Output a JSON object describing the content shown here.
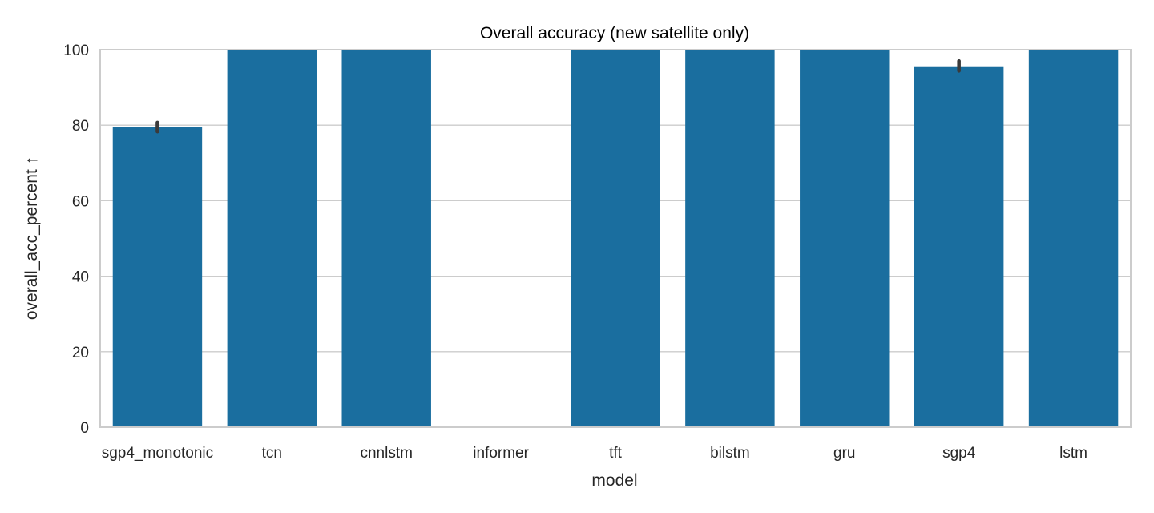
{
  "chart_data": {
    "type": "bar",
    "title": "Overall accuracy (new satellite only)",
    "xlabel": "model",
    "ylabel": "overall_acc_percent ↑",
    "categories": [
      "sgp4_monotonic",
      "tcn",
      "cnnlstm",
      "informer",
      "tft",
      "bilstm",
      "gru",
      "sgp4",
      "lstm"
    ],
    "values": [
      79.5,
      100,
      100,
      0,
      100,
      100,
      100,
      95.6,
      100
    ],
    "error_bars": [
      [
        78.3,
        80.7
      ],
      null,
      null,
      null,
      null,
      null,
      null,
      [
        94.4,
        97.0
      ],
      null
    ],
    "ylim": [
      0,
      100
    ],
    "yticks": [
      0,
      20,
      40,
      60,
      80,
      100
    ],
    "grid": true,
    "colors": {
      "bar": "#1a6e9f",
      "grid": "#cccccc",
      "error": "#3a3a3a",
      "frame": "#cccccc"
    }
  }
}
